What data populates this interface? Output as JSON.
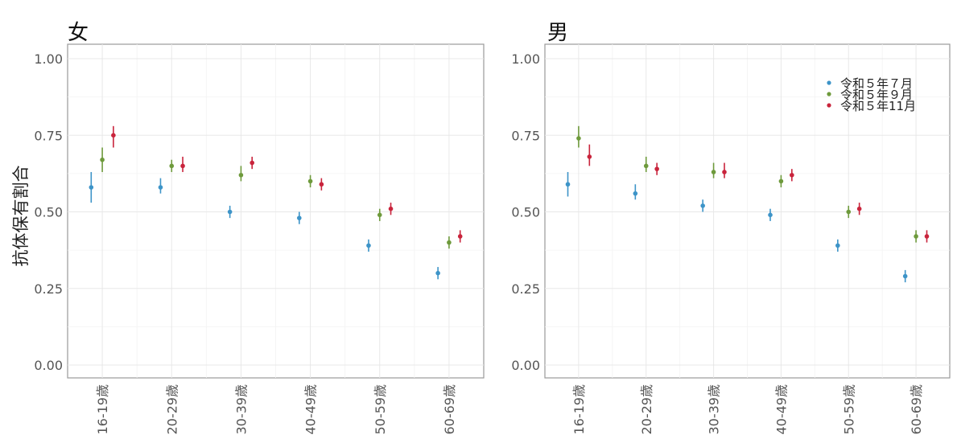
{
  "chart_data": [
    {
      "type": "scatter",
      "title": "女",
      "ylabel": "抗体保有割合",
      "xlabel": "",
      "ylim": [
        0,
        1
      ],
      "yticks": [
        "0.00",
        "0.25",
        "0.50",
        "0.75",
        "1.00"
      ],
      "categories": [
        "16-19歳",
        "20-29歳",
        "30-39歳",
        "40-49歳",
        "50-59歳",
        "60-69歳"
      ],
      "grid": true,
      "legend": "none",
      "series": [
        {
          "name": "令和５年７月",
          "color": "#3d94c8",
          "values": [
            0.58,
            0.58,
            0.5,
            0.48,
            0.39,
            0.3
          ],
          "lower": [
            0.53,
            0.56,
            0.48,
            0.46,
            0.37,
            0.28
          ],
          "upper": [
            0.63,
            0.61,
            0.52,
            0.5,
            0.41,
            0.32
          ]
        },
        {
          "name": "令和５年９月",
          "color": "#6e9a3c",
          "values": [
            0.67,
            0.65,
            0.62,
            0.6,
            0.49,
            0.4
          ],
          "lower": [
            0.63,
            0.63,
            0.6,
            0.58,
            0.47,
            0.38
          ],
          "upper": [
            0.71,
            0.67,
            0.65,
            0.62,
            0.51,
            0.42
          ]
        },
        {
          "name": "令和５年11月",
          "color": "#c9243c",
          "values": [
            0.75,
            0.65,
            0.66,
            0.59,
            0.51,
            0.42
          ],
          "lower": [
            0.71,
            0.63,
            0.64,
            0.57,
            0.49,
            0.4
          ],
          "upper": [
            0.78,
            0.68,
            0.68,
            0.61,
            0.53,
            0.44
          ]
        }
      ]
    },
    {
      "type": "scatter",
      "title": "男",
      "ylabel": "",
      "xlabel": "",
      "ylim": [
        0,
        1
      ],
      "yticks": [
        "0.00",
        "0.25",
        "0.50",
        "0.75",
        "1.00"
      ],
      "categories": [
        "16-19歳",
        "20-29歳",
        "30-39歳",
        "40-49歳",
        "50-59歳",
        "60-69歳"
      ],
      "grid": true,
      "legend": "top-right",
      "series": [
        {
          "name": "令和５年７月",
          "color": "#3d94c8",
          "values": [
            0.59,
            0.56,
            0.52,
            0.49,
            0.39,
            0.29
          ],
          "lower": [
            0.55,
            0.54,
            0.5,
            0.47,
            0.37,
            0.27
          ],
          "upper": [
            0.63,
            0.59,
            0.54,
            0.51,
            0.41,
            0.31
          ]
        },
        {
          "name": "令和５年９月",
          "color": "#6e9a3c",
          "values": [
            0.74,
            0.65,
            0.63,
            0.6,
            0.5,
            0.42
          ],
          "lower": [
            0.71,
            0.63,
            0.61,
            0.58,
            0.48,
            0.4
          ],
          "upper": [
            0.78,
            0.68,
            0.66,
            0.62,
            0.52,
            0.44
          ]
        },
        {
          "name": "令和５年11月",
          "color": "#c9243c",
          "values": [
            0.68,
            0.64,
            0.63,
            0.62,
            0.51,
            0.42
          ],
          "lower": [
            0.65,
            0.62,
            0.61,
            0.6,
            0.49,
            0.4
          ],
          "upper": [
            0.72,
            0.66,
            0.66,
            0.64,
            0.53,
            0.44
          ]
        }
      ]
    }
  ]
}
